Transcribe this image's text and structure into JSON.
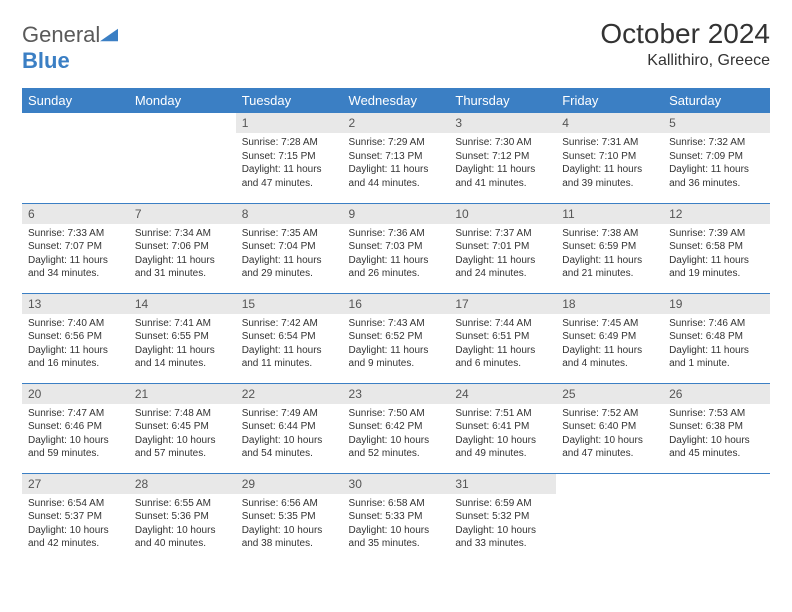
{
  "logo": {
    "general": "General",
    "blue": "Blue"
  },
  "title": "October 2024",
  "location": "Kallithiro, Greece",
  "header_bg": "#3b7fc4",
  "daynum_bg": "#e8e8e8",
  "text_color": "#333333",
  "dayNames": [
    "Sunday",
    "Monday",
    "Tuesday",
    "Wednesday",
    "Thursday",
    "Friday",
    "Saturday"
  ],
  "weeks": [
    [
      null,
      null,
      {
        "n": "1",
        "sr": "Sunrise: 7:28 AM",
        "ss": "Sunset: 7:15 PM",
        "dl": "Daylight: 11 hours and 47 minutes."
      },
      {
        "n": "2",
        "sr": "Sunrise: 7:29 AM",
        "ss": "Sunset: 7:13 PM",
        "dl": "Daylight: 11 hours and 44 minutes."
      },
      {
        "n": "3",
        "sr": "Sunrise: 7:30 AM",
        "ss": "Sunset: 7:12 PM",
        "dl": "Daylight: 11 hours and 41 minutes."
      },
      {
        "n": "4",
        "sr": "Sunrise: 7:31 AM",
        "ss": "Sunset: 7:10 PM",
        "dl": "Daylight: 11 hours and 39 minutes."
      },
      {
        "n": "5",
        "sr": "Sunrise: 7:32 AM",
        "ss": "Sunset: 7:09 PM",
        "dl": "Daylight: 11 hours and 36 minutes."
      }
    ],
    [
      {
        "n": "6",
        "sr": "Sunrise: 7:33 AM",
        "ss": "Sunset: 7:07 PM",
        "dl": "Daylight: 11 hours and 34 minutes."
      },
      {
        "n": "7",
        "sr": "Sunrise: 7:34 AM",
        "ss": "Sunset: 7:06 PM",
        "dl": "Daylight: 11 hours and 31 minutes."
      },
      {
        "n": "8",
        "sr": "Sunrise: 7:35 AM",
        "ss": "Sunset: 7:04 PM",
        "dl": "Daylight: 11 hours and 29 minutes."
      },
      {
        "n": "9",
        "sr": "Sunrise: 7:36 AM",
        "ss": "Sunset: 7:03 PM",
        "dl": "Daylight: 11 hours and 26 minutes."
      },
      {
        "n": "10",
        "sr": "Sunrise: 7:37 AM",
        "ss": "Sunset: 7:01 PM",
        "dl": "Daylight: 11 hours and 24 minutes."
      },
      {
        "n": "11",
        "sr": "Sunrise: 7:38 AM",
        "ss": "Sunset: 6:59 PM",
        "dl": "Daylight: 11 hours and 21 minutes."
      },
      {
        "n": "12",
        "sr": "Sunrise: 7:39 AM",
        "ss": "Sunset: 6:58 PM",
        "dl": "Daylight: 11 hours and 19 minutes."
      }
    ],
    [
      {
        "n": "13",
        "sr": "Sunrise: 7:40 AM",
        "ss": "Sunset: 6:56 PM",
        "dl": "Daylight: 11 hours and 16 minutes."
      },
      {
        "n": "14",
        "sr": "Sunrise: 7:41 AM",
        "ss": "Sunset: 6:55 PM",
        "dl": "Daylight: 11 hours and 14 minutes."
      },
      {
        "n": "15",
        "sr": "Sunrise: 7:42 AM",
        "ss": "Sunset: 6:54 PM",
        "dl": "Daylight: 11 hours and 11 minutes."
      },
      {
        "n": "16",
        "sr": "Sunrise: 7:43 AM",
        "ss": "Sunset: 6:52 PM",
        "dl": "Daylight: 11 hours and 9 minutes."
      },
      {
        "n": "17",
        "sr": "Sunrise: 7:44 AM",
        "ss": "Sunset: 6:51 PM",
        "dl": "Daylight: 11 hours and 6 minutes."
      },
      {
        "n": "18",
        "sr": "Sunrise: 7:45 AM",
        "ss": "Sunset: 6:49 PM",
        "dl": "Daylight: 11 hours and 4 minutes."
      },
      {
        "n": "19",
        "sr": "Sunrise: 7:46 AM",
        "ss": "Sunset: 6:48 PM",
        "dl": "Daylight: 11 hours and 1 minute."
      }
    ],
    [
      {
        "n": "20",
        "sr": "Sunrise: 7:47 AM",
        "ss": "Sunset: 6:46 PM",
        "dl": "Daylight: 10 hours and 59 minutes."
      },
      {
        "n": "21",
        "sr": "Sunrise: 7:48 AM",
        "ss": "Sunset: 6:45 PM",
        "dl": "Daylight: 10 hours and 57 minutes."
      },
      {
        "n": "22",
        "sr": "Sunrise: 7:49 AM",
        "ss": "Sunset: 6:44 PM",
        "dl": "Daylight: 10 hours and 54 minutes."
      },
      {
        "n": "23",
        "sr": "Sunrise: 7:50 AM",
        "ss": "Sunset: 6:42 PM",
        "dl": "Daylight: 10 hours and 52 minutes."
      },
      {
        "n": "24",
        "sr": "Sunrise: 7:51 AM",
        "ss": "Sunset: 6:41 PM",
        "dl": "Daylight: 10 hours and 49 minutes."
      },
      {
        "n": "25",
        "sr": "Sunrise: 7:52 AM",
        "ss": "Sunset: 6:40 PM",
        "dl": "Daylight: 10 hours and 47 minutes."
      },
      {
        "n": "26",
        "sr": "Sunrise: 7:53 AM",
        "ss": "Sunset: 6:38 PM",
        "dl": "Daylight: 10 hours and 45 minutes."
      }
    ],
    [
      {
        "n": "27",
        "sr": "Sunrise: 6:54 AM",
        "ss": "Sunset: 5:37 PM",
        "dl": "Daylight: 10 hours and 42 minutes."
      },
      {
        "n": "28",
        "sr": "Sunrise: 6:55 AM",
        "ss": "Sunset: 5:36 PM",
        "dl": "Daylight: 10 hours and 40 minutes."
      },
      {
        "n": "29",
        "sr": "Sunrise: 6:56 AM",
        "ss": "Sunset: 5:35 PM",
        "dl": "Daylight: 10 hours and 38 minutes."
      },
      {
        "n": "30",
        "sr": "Sunrise: 6:58 AM",
        "ss": "Sunset: 5:33 PM",
        "dl": "Daylight: 10 hours and 35 minutes."
      },
      {
        "n": "31",
        "sr": "Sunrise: 6:59 AM",
        "ss": "Sunset: 5:32 PM",
        "dl": "Daylight: 10 hours and 33 minutes."
      },
      null,
      null
    ]
  ]
}
